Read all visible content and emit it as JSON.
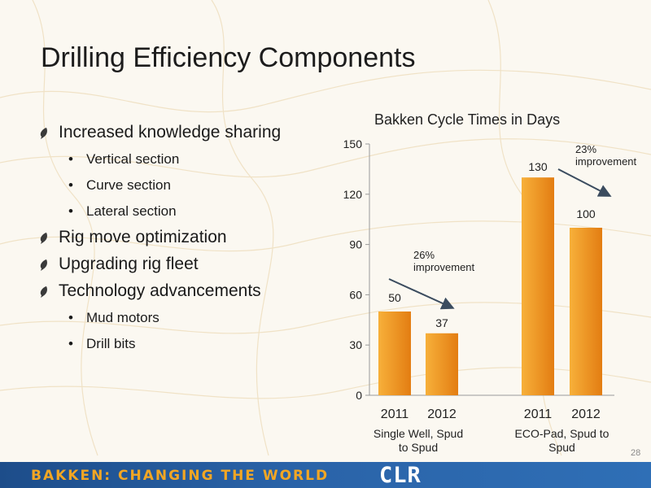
{
  "slide": {
    "title": "Drilling Efficiency Components",
    "page_number": "28",
    "bullets": [
      {
        "level": 1,
        "text": "Increased knowledge sharing"
      },
      {
        "level": 2,
        "text": "Vertical section"
      },
      {
        "level": 2,
        "text": "Curve section"
      },
      {
        "level": 2,
        "text": "Lateral section"
      },
      {
        "level": 1,
        "text": "Rig move optimization"
      },
      {
        "level": 1,
        "text": "Upgrading rig fleet"
      },
      {
        "level": 1,
        "text": "Technology advancements"
      },
      {
        "level": 2,
        "text": "Mud motors"
      },
      {
        "level": 2,
        "text": "Drill bits"
      }
    ],
    "footer": {
      "banner_text": "BAKKEN: CHANGING THE WORLD",
      "logo_text": "CLR"
    }
  },
  "chart_data": {
    "type": "bar",
    "title": "Bakken Cycle Times in Days",
    "xlabel": "",
    "ylabel": "",
    "ylim": [
      0,
      150
    ],
    "yticks": [
      0,
      30,
      60,
      90,
      120,
      150
    ],
    "groups": [
      {
        "label": "Single Well, Spud to Spud",
        "label_lines": [
          "Single Well, Spud",
          "to Spud"
        ],
        "bars": [
          {
            "x": "2011",
            "value": 50
          },
          {
            "x": "2012",
            "value": 37
          }
        ]
      },
      {
        "label": "ECO-Pad, Spud to Spud",
        "label_lines": [
          "ECO-Pad, Spud to",
          "Spud"
        ],
        "bars": [
          {
            "x": "2011",
            "value": 130
          },
          {
            "x": "2012",
            "value": 100
          }
        ]
      }
    ],
    "annotations": [
      {
        "lines": [
          "26%",
          "improvement"
        ],
        "group": 0
      },
      {
        "lines": [
          "23%",
          "improvement"
        ],
        "group": 1
      }
    ],
    "colors": {
      "bar_light": "#f7b03a",
      "bar_dark": "#e37d12",
      "arrow": "#3b4c5f",
      "axis": "#9a9a9a"
    },
    "grid": false
  }
}
